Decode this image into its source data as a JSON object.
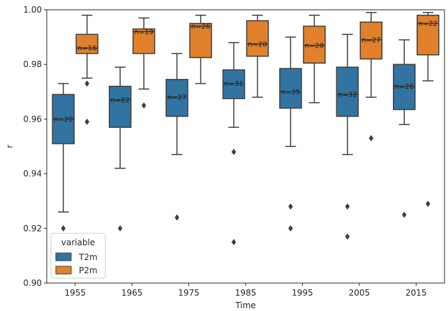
{
  "chart_data": {
    "type": "box",
    "xlabel": "Time",
    "ylabel": "r",
    "categories": [
      "1955",
      "1965",
      "1975",
      "1985",
      "1995",
      "2005",
      "2015"
    ],
    "ylim": [
      0.9,
      1.0
    ],
    "yticks": [
      "0.90",
      "0.92",
      "0.94",
      "0.96",
      "0.98",
      "1.00"
    ],
    "ytick_values": [
      0.9,
      0.92,
      0.94,
      0.96,
      0.98,
      1.0
    ],
    "legend": {
      "title": "variable",
      "placement": "lower-left"
    },
    "series": [
      {
        "name": "T2m",
        "color": "#3274a1",
        "boxes": [
          {
            "category": "1955",
            "whisker_low": 0.926,
            "q1": 0.951,
            "median": 0.96,
            "q3": 0.969,
            "whisker_high": 0.973,
            "outliers": [
              0.92
            ],
            "n_label": "n=20"
          },
          {
            "category": "1965",
            "whisker_low": 0.942,
            "q1": 0.957,
            "median": 0.967,
            "q3": 0.972,
            "whisker_high": 0.979,
            "outliers": [
              0.92
            ],
            "n_label": "n=22"
          },
          {
            "category": "1975",
            "whisker_low": 0.947,
            "q1": 0.961,
            "median": 0.968,
            "q3": 0.9745,
            "whisker_high": 0.984,
            "outliers": [
              0.924
            ],
            "n_label": "n=27"
          },
          {
            "category": "1985",
            "whisker_low": 0.957,
            "q1": 0.9675,
            "median": 0.973,
            "q3": 0.978,
            "whisker_high": 0.988,
            "outliers": [
              0.948,
              0.915
            ],
            "n_label": "n=31"
          },
          {
            "category": "1995",
            "whisker_low": 0.95,
            "q1": 0.964,
            "median": 0.97,
            "q3": 0.9785,
            "whisker_high": 0.99,
            "outliers": [
              0.928,
              0.92
            ],
            "n_label": "n=35"
          },
          {
            "category": "2005",
            "whisker_low": 0.947,
            "q1": 0.961,
            "median": 0.969,
            "q3": 0.979,
            "whisker_high": 0.991,
            "outliers": [
              0.928,
              0.917
            ],
            "n_label": "n=32"
          },
          {
            "category": "2015",
            "whisker_low": 0.958,
            "q1": 0.9635,
            "median": 0.972,
            "q3": 0.98,
            "whisker_high": 0.989,
            "outliers": [
              0.925
            ],
            "n_label": "n=26"
          }
        ]
      },
      {
        "name": "P2m",
        "color": "#e1812c",
        "boxes": [
          {
            "category": "1955",
            "whisker_low": 0.975,
            "q1": 0.984,
            "median": 0.986,
            "q3": 0.991,
            "whisker_high": 0.998,
            "outliers": [
              0.973,
              0.959
            ],
            "n_label": "n=16"
          },
          {
            "category": "1965",
            "whisker_low": 0.971,
            "q1": 0.984,
            "median": 0.992,
            "q3": 0.993,
            "whisker_high": 0.997,
            "outliers": [
              0.965
            ],
            "n_label": "n=19"
          },
          {
            "category": "1975",
            "whisker_low": 0.973,
            "q1": 0.9825,
            "median": 0.994,
            "q3": 0.995,
            "whisker_high": 0.998,
            "outliers": [],
            "n_label": "n=26"
          },
          {
            "category": "1985",
            "whisker_low": 0.968,
            "q1": 0.983,
            "median": 0.9875,
            "q3": 0.996,
            "whisker_high": 0.998,
            "outliers": [],
            "n_label": "n=28"
          },
          {
            "category": "1995",
            "whisker_low": 0.966,
            "q1": 0.9805,
            "median": 0.987,
            "q3": 0.994,
            "whisker_high": 0.998,
            "outliers": [],
            "n_label": "n=28"
          },
          {
            "category": "2005",
            "whisker_low": 0.968,
            "q1": 0.982,
            "median": 0.989,
            "q3": 0.9955,
            "whisker_high": 0.999,
            "outliers": [
              0.953
            ],
            "n_label": "n=27"
          },
          {
            "category": "2015",
            "whisker_low": 0.974,
            "q1": 0.9835,
            "median": 0.995,
            "q3": 0.998,
            "whisker_high": 0.999,
            "outliers": [
              0.929
            ],
            "n_label": "n=22"
          }
        ]
      }
    ]
  }
}
